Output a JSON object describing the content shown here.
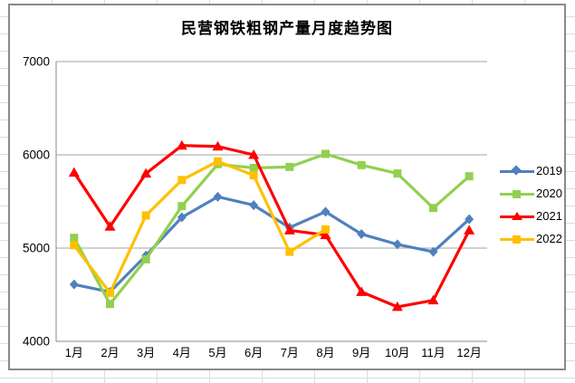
{
  "chart_title": "民营钢铁粗钢产量月度趋势图",
  "chart_data": {
    "type": "line",
    "title": "民营钢铁粗钢产量月度趋势图",
    "categories": [
      "1月",
      "2月",
      "3月",
      "4月",
      "5月",
      "6月",
      "7月",
      "8月",
      "9月",
      "10月",
      "11月",
      "12月"
    ],
    "series": [
      {
        "name": "2019",
        "color": "#4F81BD",
        "marker": "diamond",
        "values": [
          4610,
          4530,
          4920,
          5330,
          5550,
          5460,
          5220,
          5390,
          5150,
          5040,
          4960,
          5310
        ]
      },
      {
        "name": "2020",
        "color": "#92D050",
        "marker": "square",
        "values": [
          5110,
          4400,
          4880,
          5450,
          5900,
          5860,
          5870,
          6010,
          5890,
          5800,
          5430,
          5770
        ]
      },
      {
        "name": "2021",
        "color": "#FF0000",
        "marker": "triangle",
        "values": [
          5810,
          5230,
          5800,
          6100,
          6090,
          6000,
          5190,
          5140,
          4530,
          4370,
          4440,
          5190
        ]
      },
      {
        "name": "2022",
        "color": "#FFC000",
        "marker": "square",
        "values": [
          5030,
          4520,
          5350,
          5730,
          5930,
          5780,
          4960,
          5200,
          null,
          null,
          null,
          null
        ]
      }
    ],
    "xlabel": "",
    "ylabel": "",
    "ylim": [
      4000,
      7000
    ],
    "yticks": [
      4000,
      5000,
      6000,
      7000
    ],
    "grid": "horizontal",
    "legend_position": "right",
    "gridline_color": "#a3a3a3",
    "axis_color": "#8a8a8a",
    "tick_label_color": "#000000"
  }
}
